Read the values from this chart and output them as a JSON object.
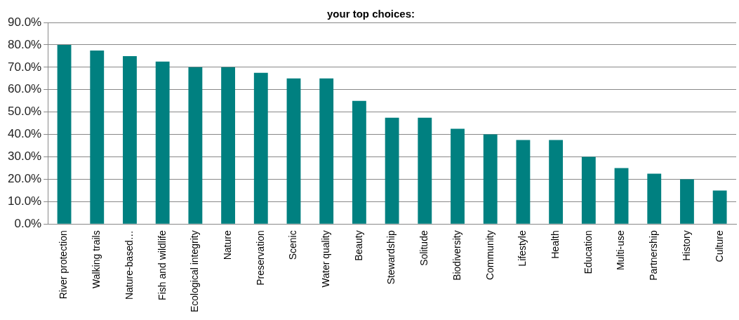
{
  "chart_data": {
    "type": "bar",
    "title": "your top choices:",
    "categories": [
      "River protection",
      "Walking trails",
      "Nature-based…",
      "Fish and wildlife",
      "Ecological integrity",
      "Nature",
      "Preservation",
      "Scenic",
      "Water quality",
      "Beauty",
      "Stewardship",
      "Solitude",
      "Biodiversity",
      "Community",
      "Lifestyle",
      "Health",
      "Education",
      "Multi-use",
      "Partnership",
      "History",
      "Culture"
    ],
    "values": [
      80,
      77.5,
      75,
      72.5,
      70,
      70,
      67.5,
      65,
      65,
      55,
      47.5,
      47.5,
      42.5,
      40,
      37.5,
      37.5,
      30,
      25,
      22.5,
      20,
      15
    ],
    "color": "#008080",
    "ylim": [
      0,
      90
    ],
    "yticks": [
      {
        "value": 0,
        "label": "0.0%"
      },
      {
        "value": 10,
        "label": "10.0%"
      },
      {
        "value": 20,
        "label": "20.0%"
      },
      {
        "value": 30,
        "label": "30.0%"
      },
      {
        "value": 40,
        "label": "40.0%"
      },
      {
        "value": 50,
        "label": "50.0%"
      },
      {
        "value": 60,
        "label": "60.0%"
      },
      {
        "value": 70,
        "label": "70.0%"
      },
      {
        "value": 80,
        "label": "80.0%"
      },
      {
        "value": 90,
        "label": "90.0%"
      }
    ],
    "grid": "y",
    "legend": false
  }
}
